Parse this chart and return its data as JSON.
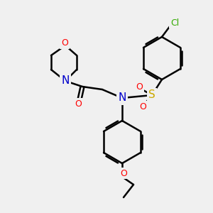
{
  "bg_color": "#f0f0f0",
  "bond_color": "#000000",
  "bond_width": 1.8,
  "atom_colors": {
    "C": "#000000",
    "N": "#0000cc",
    "O": "#ff0000",
    "S": "#ccaa00",
    "Cl": "#33aa00"
  },
  "font_size": 10,
  "fig_size": [
    3.0,
    3.0
  ],
  "dpi": 100,
  "xlim": [
    0,
    300
  ],
  "ylim": [
    0,
    300
  ]
}
